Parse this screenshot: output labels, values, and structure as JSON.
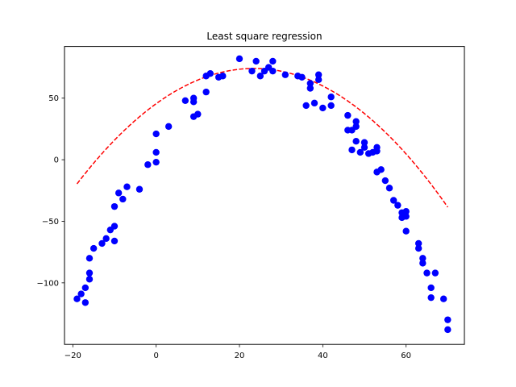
{
  "chart_data": {
    "type": "scatter",
    "title": "Least square regression",
    "xlabel": "",
    "ylabel": "",
    "xlim": [
      -22,
      74
    ],
    "ylim": [
      -150,
      92
    ],
    "xticks": [
      -20,
      0,
      20,
      40,
      60
    ],
    "yticks": [
      -100,
      -50,
      0,
      50
    ],
    "grid": false,
    "colors": {
      "points": "#0000ff",
      "fit": "#ff0000"
    },
    "series": [
      {
        "kind": "points",
        "points": [
          [
            -19,
            -113
          ],
          [
            -18,
            -109
          ],
          [
            -17,
            -104
          ],
          [
            -17,
            -116
          ],
          [
            -16,
            -97
          ],
          [
            -16,
            -92
          ],
          [
            -16,
            -80
          ],
          [
            -15,
            -72
          ],
          [
            -13,
            -68
          ],
          [
            -12,
            -64
          ],
          [
            -11,
            -57
          ],
          [
            -10,
            -54
          ],
          [
            -10,
            -66
          ],
          [
            -10,
            -38
          ],
          [
            -9,
            -27
          ],
          [
            -8,
            -32
          ],
          [
            -7,
            -22
          ],
          [
            -4,
            -24
          ],
          [
            -2,
            -4
          ],
          [
            0,
            6
          ],
          [
            0,
            -2
          ],
          [
            0,
            21
          ],
          [
            3,
            27
          ],
          [
            7,
            48
          ],
          [
            9,
            47
          ],
          [
            9,
            50
          ],
          [
            9,
            35
          ],
          [
            10,
            37
          ],
          [
            12,
            55
          ],
          [
            12,
            68
          ],
          [
            13,
            70
          ],
          [
            15,
            67
          ],
          [
            16,
            68
          ],
          [
            20,
            82
          ],
          [
            23,
            72
          ],
          [
            24,
            80
          ],
          [
            25,
            68
          ],
          [
            26,
            72
          ],
          [
            27,
            75
          ],
          [
            28,
            80
          ],
          [
            28,
            72
          ],
          [
            31,
            69
          ],
          [
            34,
            68
          ],
          [
            35,
            67
          ],
          [
            36,
            44
          ],
          [
            37,
            62
          ],
          [
            37,
            58
          ],
          [
            38,
            46
          ],
          [
            39,
            69
          ],
          [
            39,
            65
          ],
          [
            40,
            42
          ],
          [
            42,
            44
          ],
          [
            42,
            51
          ],
          [
            46,
            36
          ],
          [
            46,
            24
          ],
          [
            47,
            24
          ],
          [
            47,
            8
          ],
          [
            48,
            31
          ],
          [
            48,
            27
          ],
          [
            48,
            15
          ],
          [
            49,
            6
          ],
          [
            50,
            14
          ],
          [
            50,
            10
          ],
          [
            51,
            5
          ],
          [
            52,
            6
          ],
          [
            53,
            10
          ],
          [
            53,
            7
          ],
          [
            53,
            -10
          ],
          [
            54,
            -8
          ],
          [
            55,
            -17
          ],
          [
            56,
            -23
          ],
          [
            57,
            -33
          ],
          [
            58,
            -37
          ],
          [
            59,
            -47
          ],
          [
            59,
            -43
          ],
          [
            60,
            -42
          ],
          [
            60,
            -46
          ],
          [
            60,
            -58
          ],
          [
            63,
            -68
          ],
          [
            63,
            -72
          ],
          [
            64,
            -80
          ],
          [
            64,
            -84
          ],
          [
            65,
            -92
          ],
          [
            66,
            -104
          ],
          [
            66,
            -112
          ],
          [
            67,
            -92
          ],
          [
            69,
            -113
          ],
          [
            70,
            -130
          ],
          [
            70,
            -138
          ]
        ]
      },
      {
        "kind": "fit",
        "style": "dashed",
        "coefficients": {
          "a": -0.052,
          "b": 2.44,
          "c": 45.5
        },
        "x_range": [
          -19,
          70
        ]
      }
    ]
  }
}
